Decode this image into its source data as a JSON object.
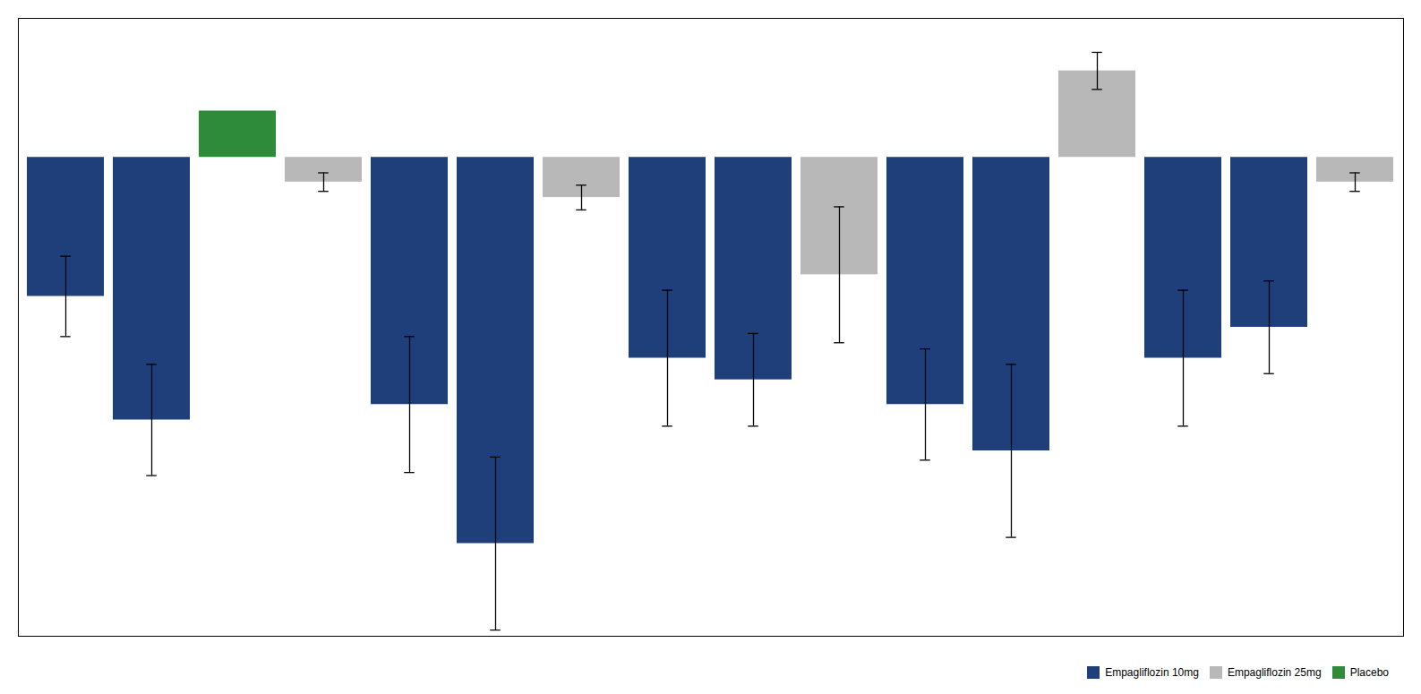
{
  "chart_data": {
    "type": "bar",
    "categories": [
      null,
      null,
      null,
      null,
      null,
      null,
      null,
      null,
      null,
      null,
      null,
      null,
      null,
      null,
      null,
      null
    ],
    "series": [
      {
        "name": "Empagliflozin 10mg",
        "color": "#1f3f7a",
        "values": [
          -4.5,
          -8.5,
          null,
          null,
          -8.0,
          -12.5,
          null,
          -6.5,
          -7.2,
          null,
          -8.0,
          -9.5,
          null,
          -6.5,
          -5.5,
          null
        ],
        "errors": [
          1.3,
          1.8,
          null,
          null,
          2.2,
          2.8,
          null,
          2.2,
          1.5,
          null,
          1.8,
          2.8,
          null,
          2.2,
          1.5,
          null
        ]
      },
      {
        "name": "Empagliflozin 25mg",
        "color": "#b8b8b8",
        "values": [
          null,
          null,
          null,
          -0.8,
          null,
          null,
          -1.3,
          null,
          null,
          -3.8,
          null,
          null,
          2.8,
          null,
          null,
          -0.8
        ],
        "errors": [
          null,
          null,
          null,
          0.3,
          null,
          null,
          0.4,
          null,
          null,
          2.2,
          null,
          null,
          0.6,
          null,
          null,
          0.3
        ]
      },
      {
        "name": "Placebo",
        "color": "#2e8b3a",
        "values": [
          null,
          null,
          1.5,
          null,
          null,
          null,
          null,
          null,
          null,
          null,
          null,
          null,
          null,
          null,
          null,
          null
        ],
        "errors": [
          null,
          null,
          0.0,
          null,
          null,
          null,
          null,
          null,
          null,
          null,
          null,
          null,
          null,
          null,
          null,
          null
        ]
      }
    ],
    "ylim": [
      -15.5,
      4.5
    ],
    "tick_labels": false,
    "legend": "lower right"
  }
}
